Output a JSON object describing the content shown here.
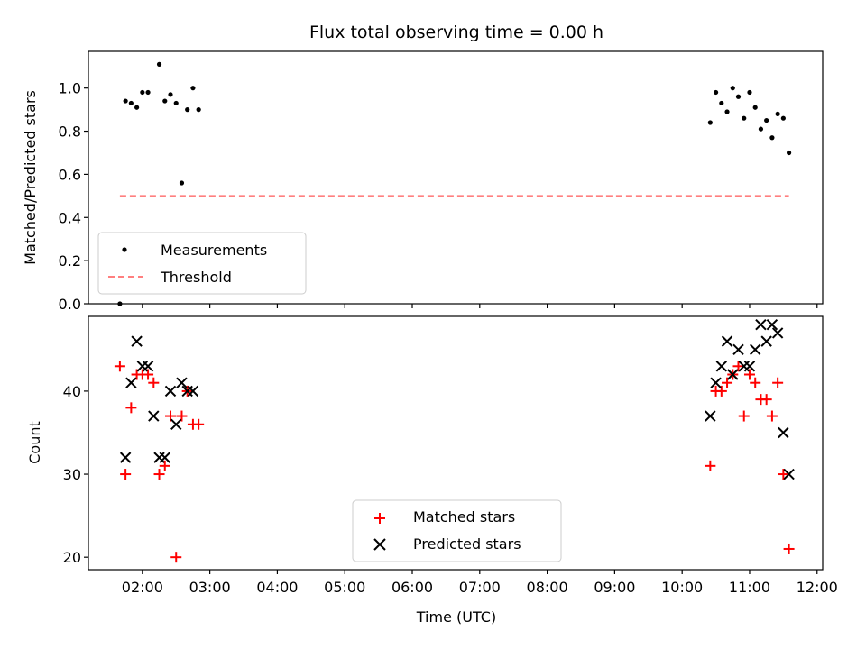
{
  "chart_data": [
    {
      "type": "scatter",
      "title": "Flux total observing time = 0.00 h",
      "xlabel": "",
      "ylabel": "Matched/Predicted stars",
      "xlim": [
        "01:12",
        "12:05"
      ],
      "ylim": [
        0,
        1.17
      ],
      "yticks": [
        0.0,
        0.2,
        0.4,
        0.6,
        0.8,
        1.0
      ],
      "ytick_labels": [
        "0.0",
        "0.2",
        "0.4",
        "0.6",
        "0.8",
        "1.0"
      ],
      "grid": false,
      "legend_position": "lower-left",
      "series": [
        {
          "name": "Measurements",
          "kind": "scatter",
          "marker": "dot",
          "color": "#000000",
          "x": [
            "01:40",
            "01:45",
            "01:50",
            "01:55",
            "02:00",
            "02:05",
            "02:15",
            "02:20",
            "02:25",
            "02:30",
            "02:35",
            "02:40",
            "02:45",
            "02:50",
            "10:25",
            "10:30",
            "10:35",
            "10:40",
            "10:45",
            "10:50",
            "10:55",
            "11:00",
            "11:05",
            "11:10",
            "11:15",
            "11:20",
            "11:25",
            "11:30",
            "11:35"
          ],
          "y": [
            0.0,
            0.94,
            0.93,
            0.91,
            0.98,
            0.98,
            1.11,
            0.94,
            0.97,
            0.93,
            0.56,
            0.9,
            1.0,
            0.9,
            0.84,
            0.98,
            0.93,
            0.89,
            1.0,
            0.96,
            0.86,
            0.98,
            0.91,
            0.81,
            0.85,
            0.77,
            0.88,
            0.86,
            0.7
          ]
        },
        {
          "name": "Threshold",
          "kind": "line",
          "style": "dashed",
          "color": "#ff7f7f",
          "x": [
            "01:40",
            "11:35"
          ],
          "y": [
            0.5,
            0.5
          ]
        }
      ]
    },
    {
      "type": "scatter",
      "title": "",
      "xlabel": "Time (UTC)",
      "ylabel": "Count",
      "xlim": [
        "01:12",
        "12:05"
      ],
      "ylim": [
        18.5,
        49
      ],
      "yticks": [
        20,
        30,
        40
      ],
      "ytick_labels": [
        "20",
        "30",
        "40"
      ],
      "xticks": [
        "02:00",
        "03:00",
        "04:00",
        "05:00",
        "06:00",
        "07:00",
        "08:00",
        "09:00",
        "10:00",
        "11:00",
        "12:00"
      ],
      "xtick_labels": [
        "02:00",
        "03:00",
        "04:00",
        "05:00",
        "06:00",
        "07:00",
        "08:00",
        "09:00",
        "10:00",
        "11:00",
        "12:00"
      ],
      "grid": false,
      "legend_position": "lower-center",
      "series": [
        {
          "name": "Matched stars",
          "kind": "scatter",
          "marker": "plus",
          "color": "#ff0000",
          "x": [
            "01:40",
            "01:45",
            "01:50",
            "01:55",
            "02:00",
            "02:05",
            "02:10",
            "02:15",
            "02:20",
            "02:25",
            "02:30",
            "02:35",
            "02:40",
            "02:45",
            "02:50",
            "10:25",
            "10:30",
            "10:35",
            "10:40",
            "10:45",
            "10:50",
            "10:55",
            "11:00",
            "11:05",
            "11:10",
            "11:15",
            "11:20",
            "11:25",
            "11:30",
            "11:35"
          ],
          "y": [
            43,
            30,
            38,
            42,
            42,
            42,
            41,
            30,
            31,
            37,
            20,
            37,
            40,
            36,
            36,
            31,
            40,
            40,
            41,
            42,
            43,
            37,
            42,
            41,
            39,
            39,
            37,
            41,
            30,
            21
          ]
        },
        {
          "name": "Predicted stars",
          "kind": "scatter",
          "marker": "x",
          "color": "#000000",
          "x": [
            "01:45",
            "01:50",
            "01:55",
            "02:00",
            "02:05",
            "02:10",
            "02:15",
            "02:20",
            "02:25",
            "02:30",
            "02:35",
            "02:40",
            "02:45",
            "10:25",
            "10:30",
            "10:35",
            "10:40",
            "10:45",
            "10:50",
            "10:55",
            "11:00",
            "11:05",
            "11:10",
            "11:15",
            "11:20",
            "11:25",
            "11:30",
            "11:35"
          ],
          "y": [
            32,
            41,
            46,
            43,
            43,
            37,
            32,
            32,
            40,
            36,
            41,
            40,
            40,
            37,
            41,
            43,
            46,
            42,
            45,
            43,
            43,
            45,
            48,
            46,
            48,
            47,
            35,
            30
          ]
        }
      ]
    }
  ]
}
